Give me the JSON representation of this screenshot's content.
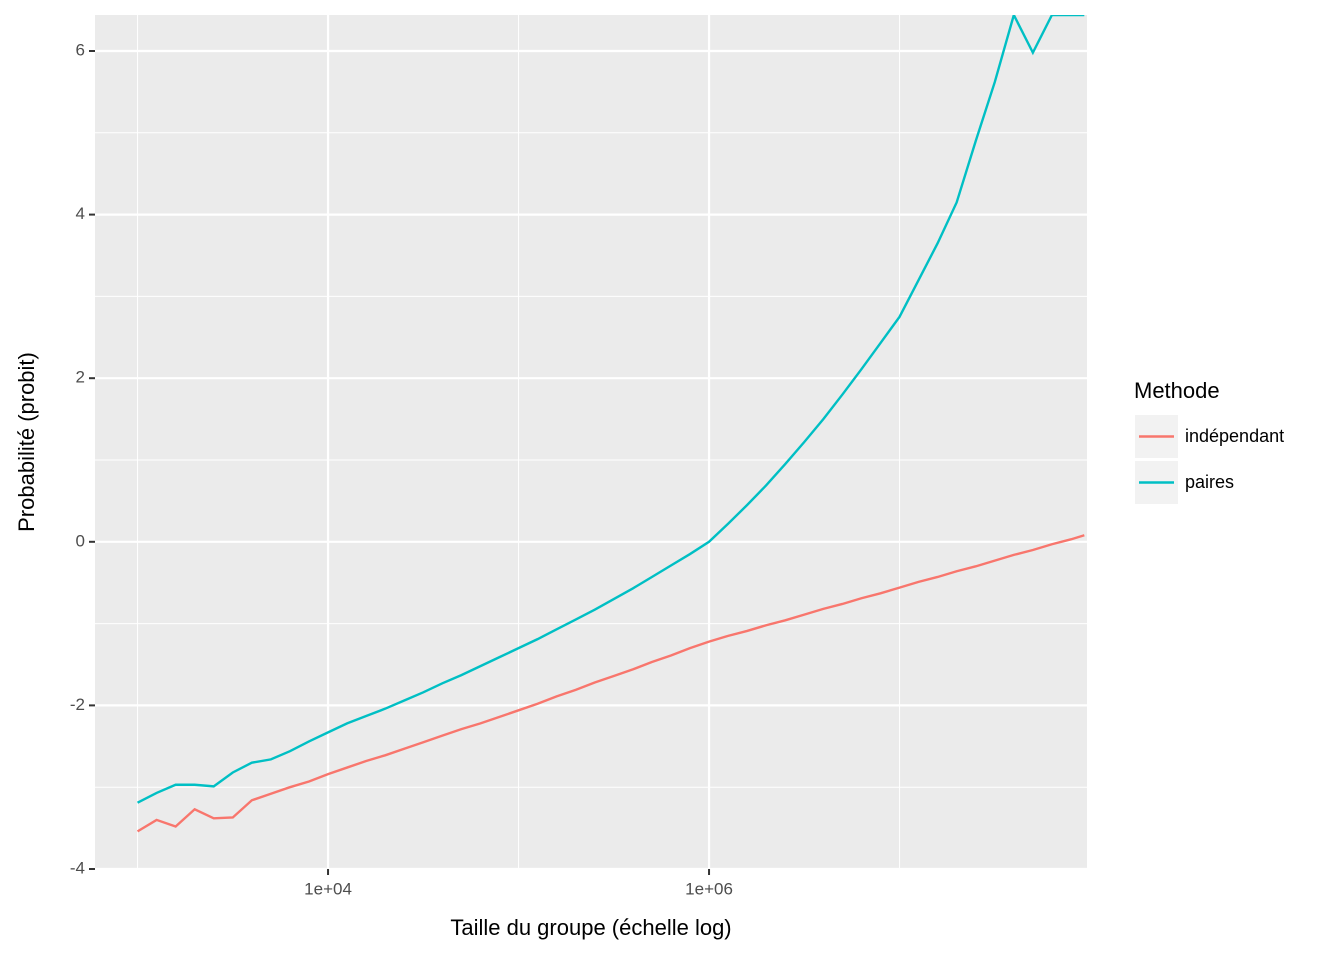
{
  "chart_data": {
    "type": "line",
    "x_label": "Taille du groupe (échelle log)",
    "y_label": "Probabilité (probit)",
    "legend_title": "Methode",
    "legend_position": "right",
    "x_scale": "log",
    "grid": true,
    "panel_color": "#EBEBEB",
    "x": [
      1000,
      1259,
      1585,
      1995,
      2512,
      3162,
      3981,
      5012,
      6310,
      7943,
      10000,
      12589,
      15849,
      19953,
      25119,
      31623,
      39811,
      50119,
      63096,
      79433,
      100000,
      125893,
      158489,
      199526,
      251189,
      316228,
      398107,
      501187,
      630957,
      794328,
      1000000,
      1258925,
      1584893,
      1995262,
      2511886,
      3162278,
      3981072,
      5011872,
      6309573,
      7943282,
      10000000,
      12589254,
      15848932,
      19952623,
      25118864,
      31622777,
      39810717,
      50118723,
      63095734,
      79432823,
      93325430
    ],
    "series": [
      {
        "name": "indépendant",
        "color": "#F8766D",
        "values": [
          -3.54,
          -3.4,
          -3.48,
          -3.27,
          -3.38,
          -3.37,
          -3.16,
          -3.08,
          -3.0,
          -2.93,
          -2.84,
          -2.76,
          -2.68,
          -2.61,
          -2.53,
          -2.45,
          -2.37,
          -2.29,
          -2.22,
          -2.14,
          -2.06,
          -1.98,
          -1.89,
          -1.81,
          -1.72,
          -1.64,
          -1.56,
          -1.47,
          -1.39,
          -1.3,
          -1.22,
          -1.15,
          -1.09,
          -1.02,
          -0.96,
          -0.89,
          -0.82,
          -0.76,
          -0.69,
          -0.63,
          -0.56,
          -0.49,
          -0.43,
          -0.36,
          -0.3,
          -0.23,
          -0.16,
          -0.1,
          -0.03,
          0.03,
          0.08
        ]
      },
      {
        "name": "paires",
        "color": "#00BFC4",
        "values": [
          -3.19,
          -3.07,
          -2.97,
          -2.97,
          -2.99,
          -2.82,
          -2.7,
          -2.66,
          -2.56,
          -2.44,
          -2.33,
          -2.22,
          -2.13,
          -2.04,
          -1.94,
          -1.84,
          -1.73,
          -1.63,
          -1.52,
          -1.41,
          -1.3,
          -1.19,
          -1.07,
          -0.95,
          -0.83,
          -0.7,
          -0.57,
          -0.43,
          -0.29,
          -0.15,
          0,
          0.22,
          0.45,
          0.69,
          0.95,
          1.22,
          1.5,
          1.8,
          2.11,
          2.43,
          2.75,
          3.2,
          3.65,
          4.15,
          4.9,
          5.62,
          6.44,
          5.98,
          6.44,
          6.44,
          6.44
        ]
      }
    ],
    "xlim": [
      598,
      96400000
    ],
    "xticks": [
      {
        "value": 10000,
        "label": "1e+04"
      },
      {
        "value": 1000000,
        "label": "1e+06"
      }
    ],
    "xminor": [
      1000,
      100000,
      10000000
    ],
    "ylim": [
      -4,
      6.44
    ],
    "yticks": [
      -4,
      -2,
      0,
      2,
      4,
      6
    ],
    "yminor": [
      -3,
      -1,
      1,
      3,
      5
    ]
  }
}
